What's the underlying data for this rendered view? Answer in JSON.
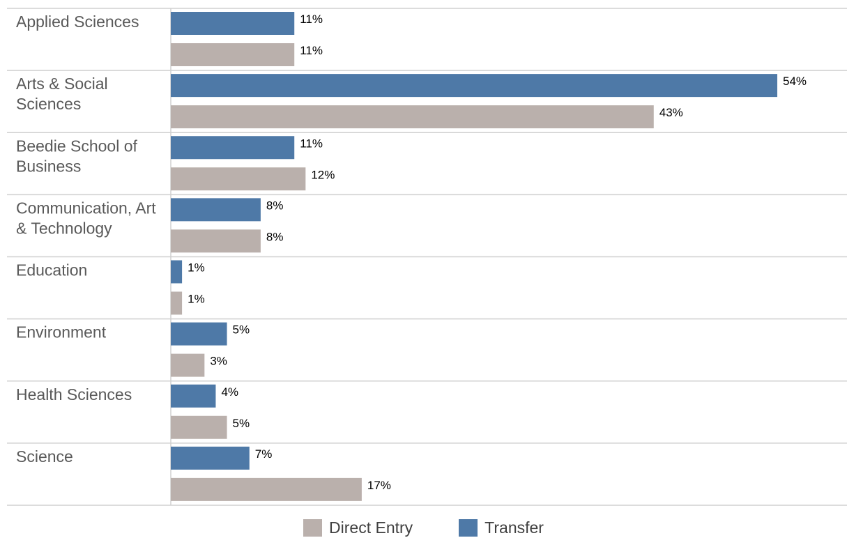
{
  "chart_data": {
    "type": "bar",
    "orientation": "horizontal",
    "categories": [
      "Applied Sciences",
      "Arts & Social Sciences",
      "Beedie School of Business",
      "Communication, Art & Technology",
      "Education",
      "Environment",
      "Health Sciences",
      "Science"
    ],
    "category_lines": [
      [
        "Applied Sciences"
      ],
      [
        "Arts & Social",
        "Sciences"
      ],
      [
        "Beedie School of",
        "Business"
      ],
      [
        "Communication, Art",
        "& Technology"
      ],
      [
        "Education"
      ],
      [
        "Environment"
      ],
      [
        "Health Sciences"
      ],
      [
        "Science"
      ]
    ],
    "series": [
      {
        "name": "Transfer",
        "color": "#4e79a7",
        "values": [
          11,
          54,
          11,
          8,
          1,
          5,
          4,
          7
        ],
        "labels": [
          "11%",
          "54%",
          "11%",
          "8%",
          "1%",
          "5%",
          "4%",
          "7%"
        ]
      },
      {
        "name": "Direct Entry",
        "color": "#bab0ac",
        "values": [
          11,
          43,
          12,
          8,
          1,
          3,
          5,
          17
        ],
        "labels": [
          "11%",
          "43%",
          "12%",
          "8%",
          "1%",
          "3%",
          "5%",
          "17%"
        ]
      }
    ],
    "unit": "%",
    "xlim": [
      0,
      54
    ],
    "grid": "horizontal separators between categories",
    "legend_position": "bottom",
    "legend": [
      {
        "name": "Direct Entry",
        "color": "#bab0ac"
      },
      {
        "name": "Transfer",
        "color": "#4e79a7"
      }
    ]
  }
}
